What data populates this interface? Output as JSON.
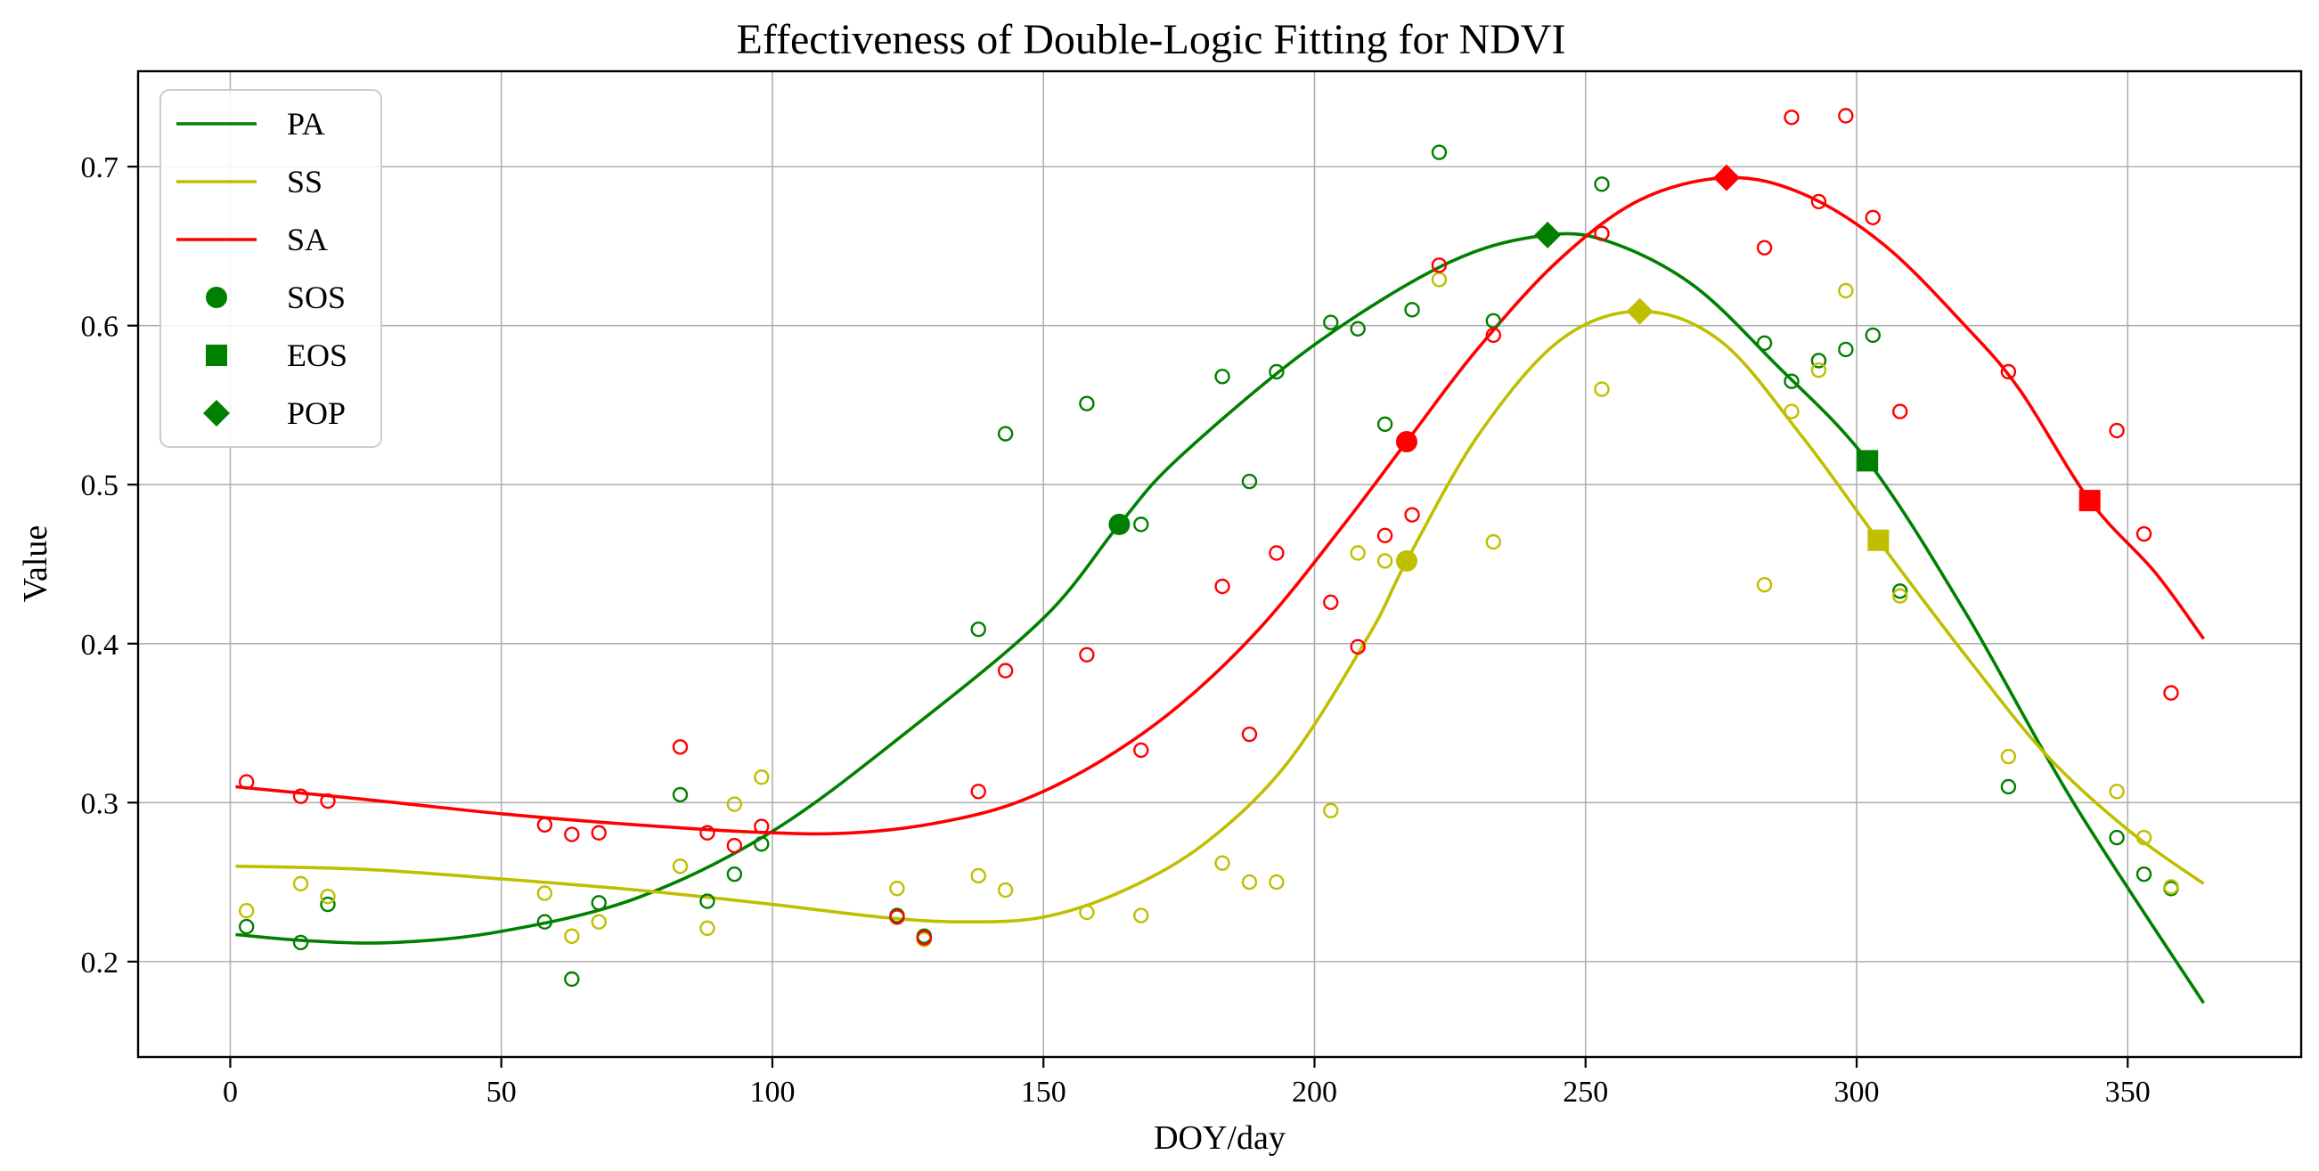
{
  "chart_data": {
    "type": "line",
    "title": "Effectiveness of Double-Logic Fitting for NDVI",
    "xlabel": "DOY/day",
    "ylabel": "Value",
    "xlim": [
      -17,
      382
    ],
    "ylim": [
      0.14,
      0.76
    ],
    "xticks": [
      0,
      50,
      100,
      150,
      200,
      250,
      300,
      350
    ],
    "yticks": [
      0.2,
      0.3,
      0.4,
      0.5,
      0.6,
      0.7
    ],
    "grid": true,
    "legend_position": "top-left",
    "series": [
      {
        "name": "PA",
        "color": "#008000",
        "curve": [
          [
            1,
            0.217
          ],
          [
            15,
            0.213
          ],
          [
            30,
            0.212
          ],
          [
            50,
            0.219
          ],
          [
            75,
            0.24
          ],
          [
            100,
            0.282
          ],
          [
            125,
            0.345
          ],
          [
            150,
            0.416
          ],
          [
            164,
            0.475
          ],
          [
            175,
            0.517
          ],
          [
            200,
            0.588
          ],
          [
            225,
            0.64
          ],
          [
            243,
            0.657
          ],
          [
            255,
            0.652
          ],
          [
            270,
            0.625
          ],
          [
            285,
            0.576
          ],
          [
            302,
            0.515
          ],
          [
            320,
            0.42
          ],
          [
            340,
            0.3
          ],
          [
            364,
            0.174
          ]
        ],
        "points": [
          [
            3,
            0.222
          ],
          [
            13,
            0.212
          ],
          [
            18,
            0.236
          ],
          [
            58,
            0.225
          ],
          [
            63,
            0.189
          ],
          [
            68,
            0.237
          ],
          [
            83,
            0.305
          ],
          [
            88,
            0.238
          ],
          [
            93,
            0.255
          ],
          [
            98,
            0.274
          ],
          [
            123,
            0.229
          ],
          [
            128,
            0.216
          ],
          [
            138,
            0.409
          ],
          [
            143,
            0.532
          ],
          [
            158,
            0.551
          ],
          [
            168,
            0.475
          ],
          [
            183,
            0.568
          ],
          [
            188,
            0.502
          ],
          [
            193,
            0.571
          ],
          [
            203,
            0.602
          ],
          [
            208,
            0.598
          ],
          [
            213,
            0.538
          ],
          [
            218,
            0.61
          ],
          [
            223,
            0.709
          ],
          [
            233,
            0.603
          ],
          [
            253,
            0.689
          ],
          [
            283,
            0.589
          ],
          [
            288,
            0.565
          ],
          [
            293,
            0.578
          ],
          [
            298,
            0.585
          ],
          [
            303,
            0.594
          ],
          [
            308,
            0.433
          ],
          [
            328,
            0.31
          ],
          [
            348,
            0.278
          ],
          [
            353,
            0.255
          ],
          [
            358,
            0.246
          ]
        ]
      },
      {
        "name": "SS",
        "color": "#bfbf00",
        "curve": [
          [
            1,
            0.26
          ],
          [
            25,
            0.258
          ],
          [
            50,
            0.252
          ],
          [
            75,
            0.245
          ],
          [
            100,
            0.236
          ],
          [
            120,
            0.228
          ],
          [
            135,
            0.225
          ],
          [
            150,
            0.228
          ],
          [
            165,
            0.245
          ],
          [
            180,
            0.275
          ],
          [
            195,
            0.325
          ],
          [
            210,
            0.405
          ],
          [
            217,
            0.452
          ],
          [
            230,
            0.53
          ],
          [
            245,
            0.59
          ],
          [
            260,
            0.609
          ],
          [
            275,
            0.59
          ],
          [
            290,
            0.53
          ],
          [
            304,
            0.465
          ],
          [
            320,
            0.393
          ],
          [
            335,
            0.33
          ],
          [
            350,
            0.283
          ],
          [
            364,
            0.249
          ]
        ],
        "points": [
          [
            3,
            0.232
          ],
          [
            13,
            0.249
          ],
          [
            18,
            0.241
          ],
          [
            58,
            0.243
          ],
          [
            63,
            0.216
          ],
          [
            68,
            0.225
          ],
          [
            83,
            0.26
          ],
          [
            88,
            0.221
          ],
          [
            93,
            0.299
          ],
          [
            98,
            0.316
          ],
          [
            123,
            0.246
          ],
          [
            128,
            0.214
          ],
          [
            138,
            0.254
          ],
          [
            143,
            0.245
          ],
          [
            158,
            0.231
          ],
          [
            168,
            0.229
          ],
          [
            183,
            0.262
          ],
          [
            188,
            0.25
          ],
          [
            193,
            0.25
          ],
          [
            203,
            0.295
          ],
          [
            208,
            0.457
          ],
          [
            213,
            0.452
          ],
          [
            223,
            0.629
          ],
          [
            233,
            0.464
          ],
          [
            253,
            0.56
          ],
          [
            283,
            0.437
          ],
          [
            288,
            0.546
          ],
          [
            293,
            0.572
          ],
          [
            298,
            0.622
          ],
          [
            308,
            0.43
          ],
          [
            328,
            0.329
          ],
          [
            348,
            0.307
          ],
          [
            353,
            0.278
          ],
          [
            358,
            0.247
          ]
        ]
      },
      {
        "name": "SA",
        "color": "#ff0000",
        "curve": [
          [
            1,
            0.31
          ],
          [
            25,
            0.302
          ],
          [
            50,
            0.293
          ],
          [
            75,
            0.286
          ],
          [
            100,
            0.281
          ],
          [
            115,
            0.281
          ],
          [
            130,
            0.287
          ],
          [
            145,
            0.3
          ],
          [
            160,
            0.325
          ],
          [
            175,
            0.361
          ],
          [
            190,
            0.41
          ],
          [
            205,
            0.473
          ],
          [
            217,
            0.527
          ],
          [
            230,
            0.585
          ],
          [
            245,
            0.641
          ],
          [
            260,
            0.679
          ],
          [
            276,
            0.693
          ],
          [
            290,
            0.683
          ],
          [
            305,
            0.651
          ],
          [
            320,
            0.6
          ],
          [
            330,
            0.56
          ],
          [
            343,
            0.49
          ],
          [
            355,
            0.445
          ],
          [
            364,
            0.403
          ]
        ],
        "points": [
          [
            3,
            0.313
          ],
          [
            13,
            0.304
          ],
          [
            18,
            0.301
          ],
          [
            58,
            0.286
          ],
          [
            63,
            0.28
          ],
          [
            68,
            0.281
          ],
          [
            83,
            0.335
          ],
          [
            88,
            0.281
          ],
          [
            93,
            0.273
          ],
          [
            98,
            0.285
          ],
          [
            123,
            0.228
          ],
          [
            128,
            0.215
          ],
          [
            138,
            0.307
          ],
          [
            143,
            0.383
          ],
          [
            158,
            0.393
          ],
          [
            168,
            0.333
          ],
          [
            183,
            0.436
          ],
          [
            188,
            0.343
          ],
          [
            193,
            0.457
          ],
          [
            203,
            0.426
          ],
          [
            208,
            0.398
          ],
          [
            213,
            0.468
          ],
          [
            218,
            0.481
          ],
          [
            223,
            0.638
          ],
          [
            233,
            0.594
          ],
          [
            253,
            0.658
          ],
          [
            283,
            0.649
          ],
          [
            288,
            0.731
          ],
          [
            293,
            0.678
          ],
          [
            298,
            0.732
          ],
          [
            303,
            0.668
          ],
          [
            308,
            0.546
          ],
          [
            328,
            0.571
          ],
          [
            348,
            0.534
          ],
          [
            353,
            0.469
          ],
          [
            358,
            0.369
          ]
        ]
      }
    ],
    "markers": {
      "SOS": [
        {
          "series": "PA",
          "x": 164,
          "y": 0.475
        },
        {
          "series": "SS",
          "x": 217,
          "y": 0.452
        },
        {
          "series": "SA",
          "x": 217,
          "y": 0.527
        }
      ],
      "EOS": [
        {
          "series": "PA",
          "x": 302,
          "y": 0.515
        },
        {
          "series": "SS",
          "x": 304,
          "y": 0.465
        },
        {
          "series": "SA",
          "x": 343,
          "y": 0.49
        }
      ],
      "POP": [
        {
          "series": "PA",
          "x": 243,
          "y": 0.657
        },
        {
          "series": "SS",
          "x": 260,
          "y": 0.609
        },
        {
          "series": "SA",
          "x": 276,
          "y": 0.693
        }
      ]
    },
    "legend": [
      {
        "label": "PA",
        "kind": "line",
        "color": "#008000"
      },
      {
        "label": "SS",
        "kind": "line",
        "color": "#bfbf00"
      },
      {
        "label": "SA",
        "kind": "line",
        "color": "#ff0000"
      },
      {
        "label": "SOS",
        "kind": "circle",
        "color": "#008000"
      },
      {
        "label": "EOS",
        "kind": "square",
        "color": "#008000"
      },
      {
        "label": "POP",
        "kind": "diamond",
        "color": "#008000"
      }
    ]
  }
}
